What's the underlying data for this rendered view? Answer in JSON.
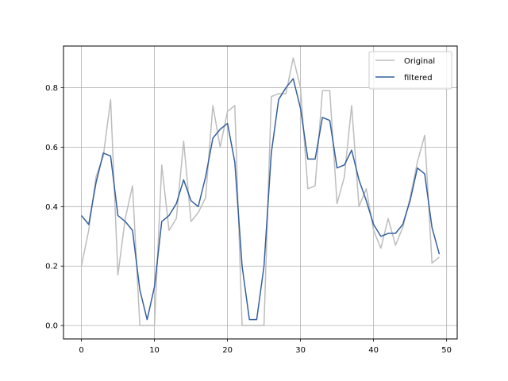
{
  "chart_data": {
    "type": "line",
    "title": "",
    "xlabel": "",
    "ylabel": "",
    "xlim": [
      -2.45,
      51.45
    ],
    "ylim": [
      -0.045,
      0.94
    ],
    "xticks": [
      0,
      10,
      20,
      30,
      40,
      50
    ],
    "yticks": [
      0.0,
      0.2,
      0.4,
      0.6,
      0.8
    ],
    "xtick_labels": [
      "0",
      "10",
      "20",
      "30",
      "40",
      "50"
    ],
    "ytick_labels": [
      "0.0",
      "0.2",
      "0.4",
      "0.6",
      "0.8"
    ],
    "grid": true,
    "legend_position": "top-right",
    "x": [
      0,
      1,
      2,
      3,
      4,
      5,
      6,
      7,
      8,
      9,
      10,
      11,
      12,
      13,
      14,
      15,
      16,
      17,
      18,
      19,
      20,
      21,
      22,
      23,
      24,
      25,
      26,
      27,
      28,
      29,
      30,
      31,
      32,
      33,
      34,
      35,
      36,
      37,
      38,
      39,
      40,
      41,
      42,
      43,
      44,
      45,
      46,
      47,
      48,
      49
    ],
    "series": [
      {
        "name": "Original",
        "color": "#bdbdbd",
        "values": [
          0.2,
          0.32,
          0.5,
          0.57,
          0.76,
          0.17,
          0.36,
          0.47,
          0.0,
          0.0,
          0.0,
          0.54,
          0.32,
          0.36,
          0.62,
          0.35,
          0.38,
          0.43,
          0.74,
          0.6,
          0.72,
          0.74,
          0.0,
          0.0,
          0.0,
          0.0,
          0.77,
          0.78,
          0.78,
          0.9,
          0.8,
          0.46,
          0.47,
          0.79,
          0.79,
          0.41,
          0.5,
          0.74,
          0.4,
          0.46,
          0.32,
          0.26,
          0.36,
          0.27,
          0.33,
          0.43,
          0.55,
          0.64,
          0.21,
          0.23
        ]
      },
      {
        "name": "filtered",
        "color": "#34609e",
        "values": [
          0.37,
          0.34,
          0.48,
          0.58,
          0.57,
          0.37,
          0.35,
          0.32,
          0.12,
          0.02,
          0.13,
          0.35,
          0.37,
          0.41,
          0.49,
          0.42,
          0.4,
          0.5,
          0.63,
          0.66,
          0.68,
          0.55,
          0.2,
          0.02,
          0.02,
          0.2,
          0.58,
          0.76,
          0.8,
          0.83,
          0.73,
          0.56,
          0.56,
          0.7,
          0.69,
          0.53,
          0.54,
          0.59,
          0.49,
          0.42,
          0.34,
          0.3,
          0.31,
          0.31,
          0.34,
          0.42,
          0.53,
          0.51,
          0.33,
          0.24
        ]
      }
    ]
  }
}
